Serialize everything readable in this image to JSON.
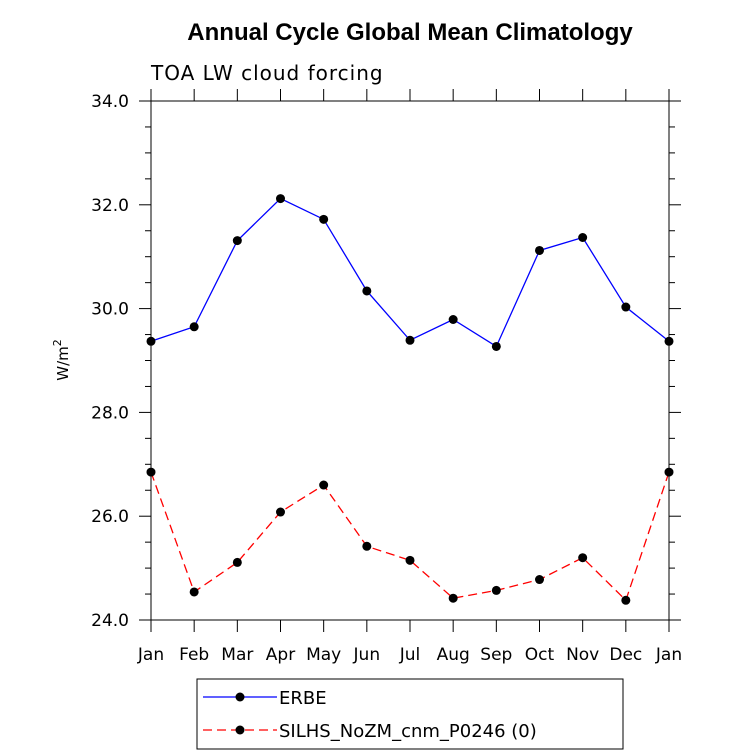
{
  "chart_data": {
    "type": "line",
    "title": "Annual Cycle Global Mean Climatology",
    "subtitle": "TOA LW cloud forcing",
    "xlabel": "",
    "ylabel": "W/m",
    "ylabel_superscript": "2",
    "categories": [
      "Jan",
      "Feb",
      "Mar",
      "Apr",
      "May",
      "Jun",
      "Jul",
      "Aug",
      "Sep",
      "Oct",
      "Nov",
      "Dec",
      "Jan"
    ],
    "ylim": [
      24.0,
      34.0
    ],
    "yticks": [
      "24.0",
      "26.0",
      "28.0",
      "30.0",
      "32.0",
      "34.0"
    ],
    "legend_position": "bottom",
    "series": [
      {
        "name": "ERBE",
        "color": "#0000ff",
        "dash": "solid",
        "values": [
          29.37,
          29.65,
          31.31,
          32.12,
          31.72,
          30.34,
          29.39,
          29.79,
          29.27,
          31.12,
          31.37,
          30.03,
          29.37
        ]
      },
      {
        "name": "SILHS_NoZM_cnm_P0246 (0)",
        "color": "#ff0000",
        "dash": "dashed",
        "values": [
          26.85,
          24.54,
          25.11,
          26.08,
          26.6,
          25.42,
          25.15,
          24.42,
          24.57,
          24.78,
          25.2,
          24.38,
          26.85
        ]
      }
    ]
  }
}
